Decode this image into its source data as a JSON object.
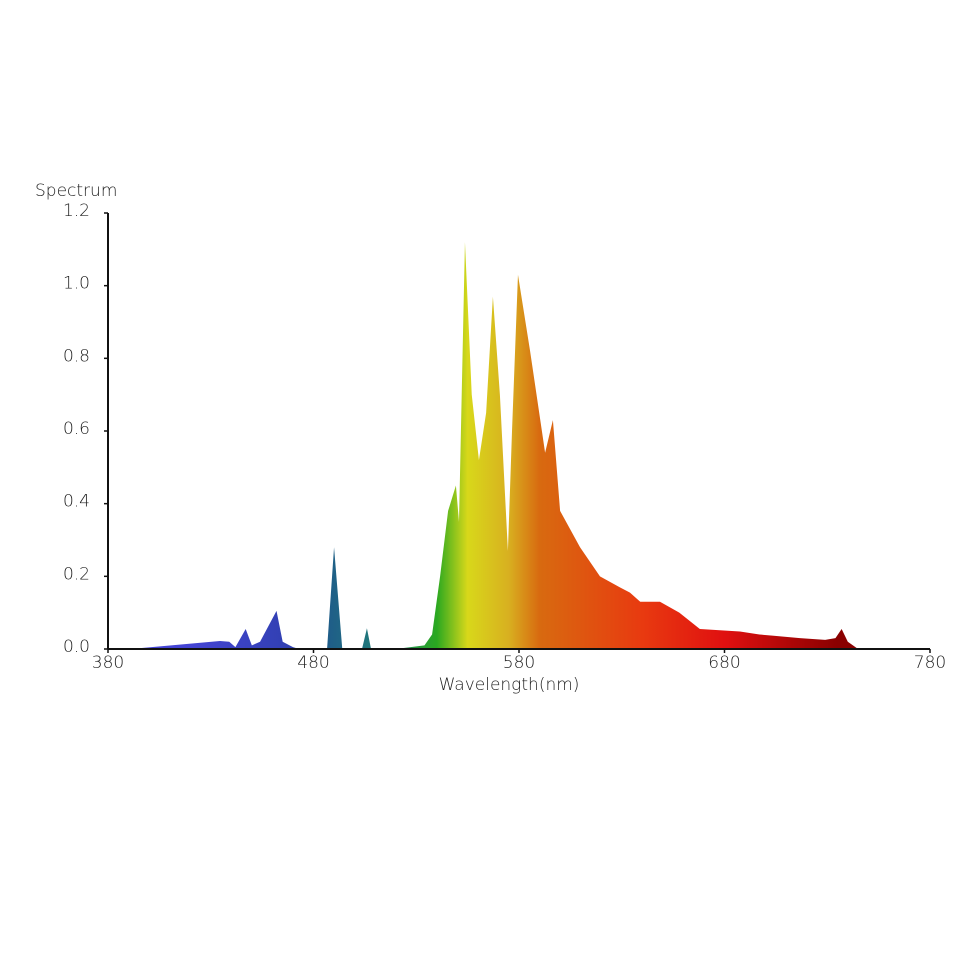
{
  "chart_data": {
    "type": "area",
    "title": "Spectrum",
    "x_label": "Wavelength(nm)",
    "x": [
      391,
      434.5,
      439,
      442,
      447,
      450,
      454,
      462,
      465,
      470,
      473,
      486.6,
      490,
      494,
      503.6,
      506,
      508,
      520,
      534,
      537.7,
      541.6,
      545.5,
      549.3,
      550.8,
      553.7,
      557,
      560.5,
      564,
      567.3,
      570.7,
      574.6,
      576.6,
      579.5,
      585.4,
      592.7,
      596.5,
      600,
      609.7,
      619.4,
      629,
      634,
      639,
      648.6,
      658,
      668,
      687.5,
      697,
      716.7,
      729,
      734,
      737,
      740,
      745
    ],
    "values": [
      0,
      0.022,
      0.02,
      0.005,
      0.055,
      0.01,
      0.02,
      0.105,
      0.02,
      0.005,
      0,
      0,
      0.28,
      0,
      0,
      0.057,
      0,
      0,
      0.01,
      0.04,
      0.2,
      0.38,
      0.45,
      0.35,
      1.12,
      0.7,
      0.52,
      0.65,
      0.97,
      0.7,
      0.27,
      0.6,
      1.03,
      0.82,
      0.54,
      0.63,
      0.38,
      0.28,
      0.2,
      0.17,
      0.155,
      0.13,
      0.13,
      0.1,
      0.055,
      0.048,
      0.04,
      0.03,
      0.025,
      0.03,
      0.055,
      0.02,
      0
    ],
    "gradient": [
      {
        "x": 420,
        "color": "#4444d4"
      },
      {
        "x": 470,
        "color": "#3040b0"
      },
      {
        "x": 485,
        "color": "#1f5a8a"
      },
      {
        "x": 510,
        "color": "#207a7a"
      },
      {
        "x": 540,
        "color": "#2aa820"
      },
      {
        "x": 555,
        "color": "#d8d81a"
      },
      {
        "x": 575,
        "color": "#d8b020"
      },
      {
        "x": 590,
        "color": "#d86a10"
      },
      {
        "x": 640,
        "color": "#e83a10"
      },
      {
        "x": 680,
        "color": "#e01010"
      },
      {
        "x": 735,
        "color": "#8a0000"
      }
    ],
    "xlim": [
      380,
      780
    ],
    "xticks": [
      380,
      480,
      580,
      680,
      780
    ],
    "ylim": [
      0,
      1.2
    ],
    "yticks": [
      {
        "value": 0,
        "label": "0.0"
      },
      0.2,
      0.4,
      0.6,
      0.8,
      {
        "value": 1,
        "label": "1.0"
      },
      1.2
    ]
  }
}
